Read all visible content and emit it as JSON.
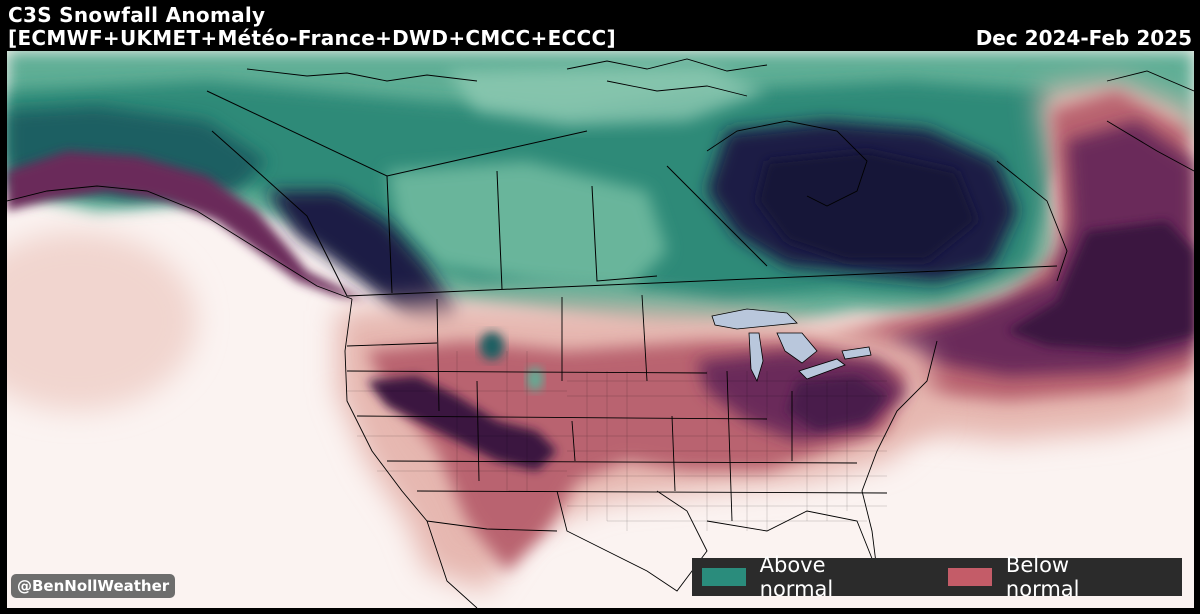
{
  "header": {
    "title": "C3S Snowfall Anomaly",
    "models": "[ECMWF+UKMET+Météo-France+DWD+CMCC+ECCC]",
    "period": "Dec 2024-Feb 2025"
  },
  "credit": "@BenNollWeather",
  "legend": {
    "above": {
      "label": "Above normal",
      "color": "#2a8c7c"
    },
    "below": {
      "label": "Below normal",
      "color": "#c45c68"
    }
  },
  "colors": {
    "background": "#000000",
    "map_base": "#fbf3f1",
    "teal_light": "#5fae95",
    "teal_mid": "#2e8a78",
    "teal_dark": "#1c5e62",
    "navy_deep": "#1e1d45",
    "pink_light": "#e6b7b0",
    "rose_mid": "#b9646f",
    "plum_dark": "#6b2b5a",
    "plum_deep": "#3a1640"
  }
}
